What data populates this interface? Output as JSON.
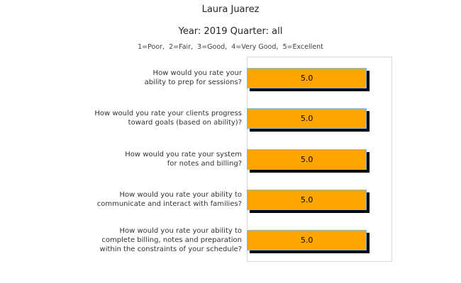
{
  "header": {
    "title": "Laura Juarez",
    "subtitle": "Year: 2019 Quarter: all",
    "scale_note": "1=Poor,  2=Fair,  3=Good,  4=Very Good,  5=Excellent"
  },
  "chart_data": {
    "type": "bar",
    "orientation": "horizontal",
    "title": "Laura Juarez",
    "subtitle": "Year: 2019 Quarter: all",
    "scale_note": "1=Poor,  2=Fair,  3=Good,  4=Very Good,  5=Excellent",
    "xlim": [
      0,
      6
    ],
    "grid": false,
    "bar_color": "#FFA500",
    "bar_edge_color": "#87B5DE",
    "shadow_color": "#000000",
    "frame_color": "#d8d8d8",
    "categories": [
      "How would you rate your ability to prep for sessions?",
      "How would you rate your clients progress toward goals (based on ability)?",
      "How would you rate your system for notes and billing?",
      "How would you rate your ability to communicate and interact with families?",
      "How would you rate your ability to complete billing, notes and preparation within the constraints of your schedule?"
    ],
    "values": [
      5.0,
      5.0,
      5.0,
      5.0,
      5.0
    ],
    "rows": [
      {
        "lines": [
          "How would you rate your",
          "ability to prep for sessions?"
        ],
        "value": 5.0,
        "value_label": "5.0"
      },
      {
        "lines": [
          "How would you rate your clients progress",
          "toward goals (based on ability)?"
        ],
        "value": 5.0,
        "value_label": "5.0"
      },
      {
        "lines": [
          "How would you rate your system",
          "for notes and billing?"
        ],
        "value": 5.0,
        "value_label": "5.0"
      },
      {
        "lines": [
          "How would you rate your ability to",
          "communicate and interact with families?"
        ],
        "value": 5.0,
        "value_label": "5.0"
      },
      {
        "lines": [
          "How would you rate your ability to",
          "complete billing, notes and preparation",
          "within the constraints of your schedule?"
        ],
        "value": 5.0,
        "value_label": "5.0"
      }
    ]
  }
}
